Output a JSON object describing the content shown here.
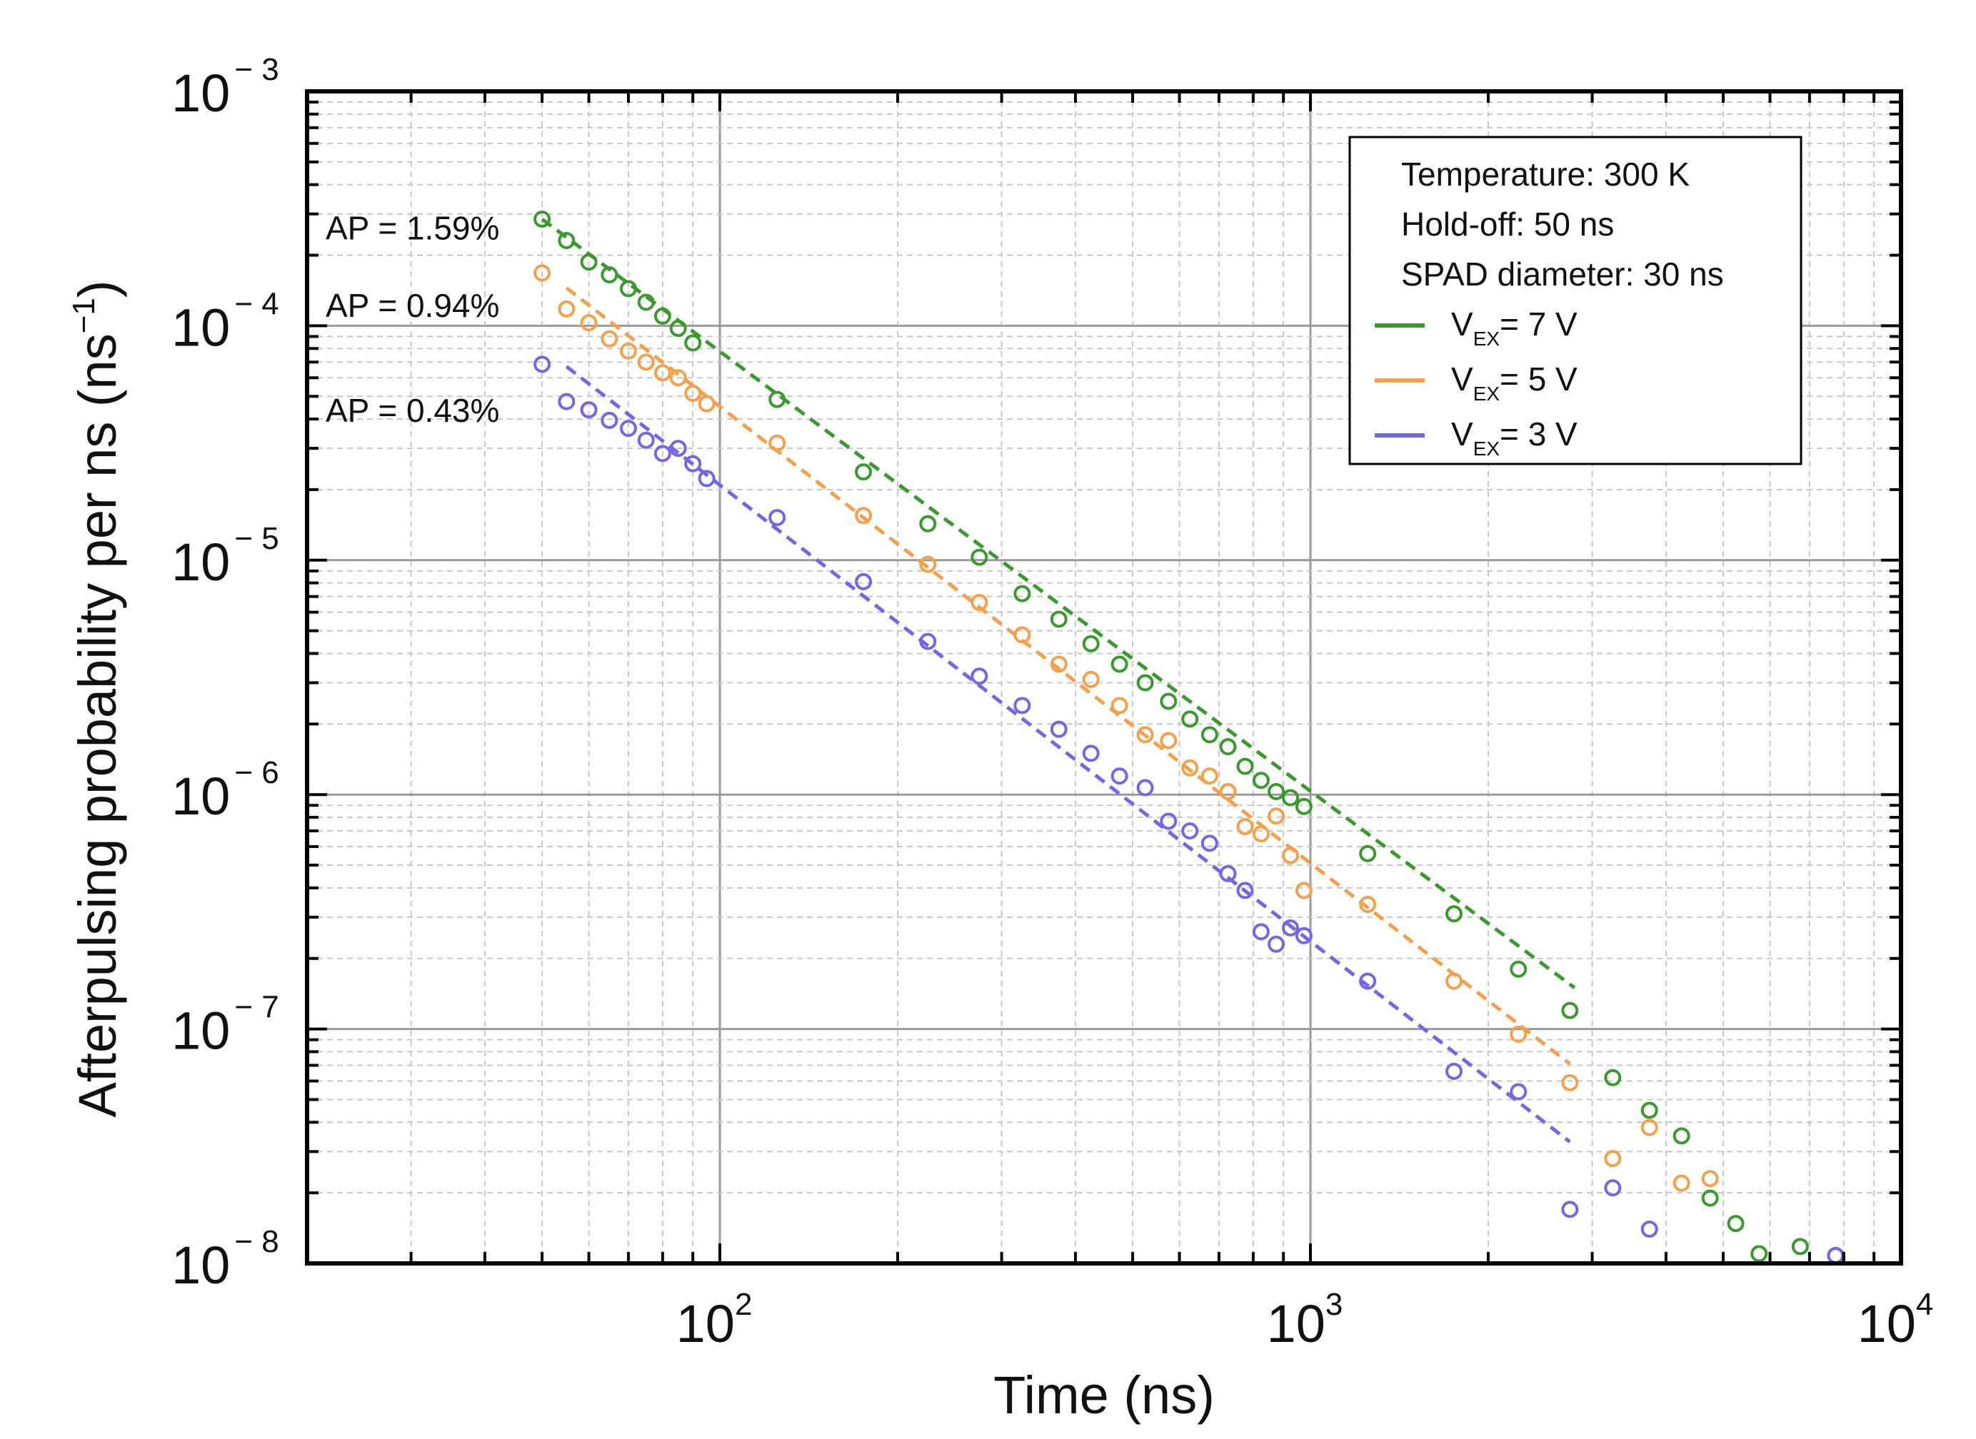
{
  "chart_data": {
    "type": "scatter",
    "title": "",
    "xlabel": "Time (ns)",
    "ylabel_main": "Afterpulsing probability per ns (ns",
    "ylabel_sup": "−1",
    "ylabel_close": ")",
    "xscale": "log",
    "yscale": "log",
    "xlim": [
      20,
      10000
    ],
    "ylim": [
      1e-08,
      0.001
    ],
    "grid": true,
    "x_ticks": [
      {
        "value": 100,
        "base": "10",
        "exp": "2"
      },
      {
        "value": 1000,
        "base": "10",
        "exp": "3"
      },
      {
        "value": 10000,
        "base": "10",
        "exp": "4"
      }
    ],
    "y_ticks": [
      {
        "value": 0.001,
        "base": "10",
        "exp": "− 3"
      },
      {
        "value": 0.0001,
        "base": "10",
        "exp": "− 4"
      },
      {
        "value": 1e-05,
        "base": "10",
        "exp": "− 5"
      },
      {
        "value": 1e-06,
        "base": "10",
        "exp": "− 6"
      },
      {
        "value": 1e-07,
        "base": "10",
        "exp": "− 7"
      },
      {
        "value": 1e-08,
        "base": "10",
        "exp": "− 8"
      }
    ],
    "legend": {
      "position": "top-right",
      "header": [
        "Temperature: 300 K",
        "Hold-off: 50 ns",
        "SPAD diameter: 30 ns"
      ],
      "entries": [
        {
          "prefix": "V",
          "sub": "EX",
          "suffix": "= 7 V"
        },
        {
          "prefix": "V",
          "sub": "EX",
          "suffix": "= 5 V"
        },
        {
          "prefix": "V",
          "sub": "EX",
          "suffix": "= 3 V"
        }
      ]
    },
    "series": [
      {
        "name": "VEX = 7 V",
        "color": "#3a9a2e",
        "annotation": "AP = 1.59%",
        "annotation_x": 20,
        "annotation_y": 0.000261,
        "fit": {
          "x": [
            50,
            2800
          ],
          "y": [
            0.000285,
            1.5e-07
          ]
        },
        "x": [
          50,
          55,
          60,
          65,
          70,
          75,
          80,
          85,
          90,
          125,
          175,
          225,
          275,
          325,
          375,
          425,
          475,
          525,
          575,
          625,
          675,
          725,
          775,
          825,
          875,
          925,
          975,
          1250,
          1750,
          2250,
          2750,
          3250,
          3750,
          4250,
          4750,
          5250,
          5750,
          6750,
          7750
        ],
        "y": [
          0.000285,
          0.000231,
          0.000187,
          0.000165,
          0.000144,
          0.000126,
          0.00011,
          9.75e-05,
          8.45e-05,
          4.85e-05,
          2.38e-05,
          1.43e-05,
          1.03e-05,
          7.2e-06,
          5.6e-06,
          4.4e-06,
          3.6e-06,
          3e-06,
          2.5e-06,
          2.1e-06,
          1.8e-06,
          1.6e-06,
          1.32e-06,
          1.15e-06,
          1.03e-06,
          9.7e-07,
          8.9e-07,
          5.6e-07,
          3.1e-07,
          1.8e-07,
          1.2e-07,
          6.2e-08,
          4.5e-08,
          3.5e-08,
          1.9e-08,
          1.48e-08,
          1.1e-08,
          1.18e-08,
          1.08e-08
        ]
      },
      {
        "name": "VEX = 5 V",
        "color": "#f5a04a",
        "annotation": "AP = 0.94%",
        "annotation_x": 20,
        "annotation_y": 0.000122,
        "fit": {
          "x": [
            55,
            2750
          ],
          "y": [
            0.000145,
            7.1e-08
          ]
        },
        "x": [
          50,
          55,
          60,
          65,
          70,
          75,
          80,
          85,
          90,
          95,
          125,
          175,
          225,
          275,
          325,
          375,
          425,
          475,
          525,
          575,
          625,
          675,
          725,
          775,
          825,
          875,
          925,
          975,
          1250,
          1750,
          2250,
          2750,
          3250,
          3750,
          4250,
          4750
        ],
        "y": [
          0.000168,
          0.000118,
          0.000103,
          8.8e-05,
          7.8e-05,
          7e-05,
          6.3e-05,
          6e-05,
          5.15e-05,
          4.65e-05,
          3.16e-05,
          1.55e-05,
          9.6e-06,
          6.6e-06,
          4.8e-06,
          3.6e-06,
          3.1e-06,
          2.4e-06,
          1.8e-06,
          1.7e-06,
          1.3e-06,
          1.2e-06,
          1.03e-06,
          7.3e-07,
          6.8e-07,
          8.1e-07,
          5.5e-07,
          3.9e-07,
          3.4e-07,
          1.6e-07,
          9.5e-08,
          5.9e-08,
          2.8e-08,
          3.8e-08,
          2.2e-08,
          2.3e-08
        ]
      },
      {
        "name": "VEX = 3 V",
        "color": "#7566e6",
        "annotation": "AP = 0.43%",
        "annotation_x": 20,
        "annotation_y": 4.35e-05,
        "fit": {
          "x": [
            55,
            2750
          ],
          "y": [
            6.7e-05,
            3.3e-08
          ]
        },
        "x": [
          50,
          55,
          60,
          65,
          70,
          75,
          80,
          85,
          90,
          95,
          125,
          175,
          225,
          275,
          325,
          375,
          425,
          475,
          525,
          575,
          625,
          675,
          725,
          775,
          825,
          875,
          925,
          975,
          1250,
          1750,
          2250,
          2750,
          3250,
          3750,
          7750
        ],
        "y": [
          6.85e-05,
          4.75e-05,
          4.38e-05,
          3.95e-05,
          3.65e-05,
          3.25e-05,
          2.85e-05,
          3e-05,
          2.58e-05,
          2.23e-05,
          1.52e-05,
          8.1e-06,
          4.5e-06,
          3.2e-06,
          2.4e-06,
          1.9e-06,
          1.5e-06,
          1.2e-06,
          1.07e-06,
          7.7e-07,
          7e-07,
          6.2e-07,
          4.6e-07,
          3.9e-07,
          2.6e-07,
          2.3e-07,
          2.7e-07,
          2.5e-07,
          1.6e-07,
          6.6e-08,
          5.4e-08,
          1.7e-08,
          2.1e-08,
          1.4e-08,
          1.08e-08
        ]
      }
    ]
  }
}
